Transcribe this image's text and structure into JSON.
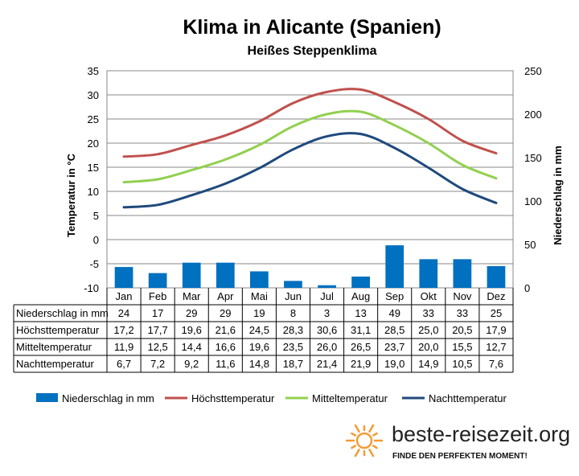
{
  "title": "Klima in Alicante (Spanien)",
  "subtitle": "Heißes Steppenklima",
  "chart_data": {
    "type": "bar+line",
    "categories": [
      "Jan",
      "Feb",
      "Mar",
      "Apr",
      "Mai",
      "Jun",
      "Jul",
      "Aug",
      "Sep",
      "Okt",
      "Nov",
      "Dez"
    ],
    "bar_series": {
      "name": "Niederschlag in mm",
      "axis": "right",
      "color": "#0070C0",
      "values": [
        24,
        17,
        29,
        29,
        19,
        8,
        3,
        13,
        49,
        33,
        33,
        25
      ]
    },
    "line_series": [
      {
        "name": "Höchsttemperatur",
        "color": "#C0504D",
        "values": [
          17.2,
          17.7,
          19.6,
          21.6,
          24.5,
          28.3,
          30.6,
          31.1,
          28.5,
          25.0,
          20.5,
          17.9
        ]
      },
      {
        "name": "Mitteltemperatur",
        "color": "#92D050",
        "values": [
          11.9,
          12.5,
          14.4,
          16.6,
          19.6,
          23.5,
          26.0,
          26.5,
          23.7,
          20.0,
          15.5,
          12.7
        ]
      },
      {
        "name": "Nachttemperatur",
        "color": "#1F497D",
        "values": [
          6.7,
          7.2,
          9.2,
          11.6,
          14.8,
          18.7,
          21.4,
          21.9,
          19.0,
          14.9,
          10.5,
          7.6
        ]
      }
    ],
    "left_axis": {
      "label": "Temperatur in °C",
      "ylim": [
        -10,
        35
      ],
      "ticks": [
        "35",
        "30",
        "25",
        "20",
        "15",
        "10",
        "5",
        "0",
        "-5",
        "-10"
      ]
    },
    "right_axis": {
      "label": "Niederschlag in mm",
      "ylim": [
        0,
        250
      ],
      "ticks": [
        "250",
        "200",
        "150",
        "100",
        "50",
        "0"
      ]
    },
    "grid": "horizontal",
    "legend_position": "bottom",
    "table": {
      "rows": [
        {
          "label": "Niederschlag in mm",
          "values": [
            "24",
            "17",
            "29",
            "29",
            "19",
            "8",
            "3",
            "13",
            "49",
            "33",
            "33",
            "25"
          ]
        },
        {
          "label": "Höchsttemperatur",
          "values": [
            "17,2",
            "17,7",
            "19,6",
            "21,6",
            "24,5",
            "28,3",
            "30,6",
            "31,1",
            "28,5",
            "25,0",
            "20,5",
            "17,9"
          ]
        },
        {
          "label": "Mitteltemperatur",
          "values": [
            "11,9",
            "12,5",
            "14,4",
            "16,6",
            "19,6",
            "23,5",
            "26,0",
            "26,5",
            "23,7",
            "20,0",
            "15,5",
            "12,7"
          ]
        },
        {
          "label": "Nachttemperatur",
          "values": [
            "6,7",
            "7,2",
            "9,2",
            "11,6",
            "14,8",
            "18,7",
            "21,4",
            "21,9",
            "19,0",
            "14,9",
            "10,5",
            "7,6"
          ]
        }
      ]
    }
  },
  "logo": {
    "text": "beste-reisezeit.org",
    "tagline": "FINDE DEN PERFEKTEN MOMENT!",
    "color": "#F39C34"
  }
}
